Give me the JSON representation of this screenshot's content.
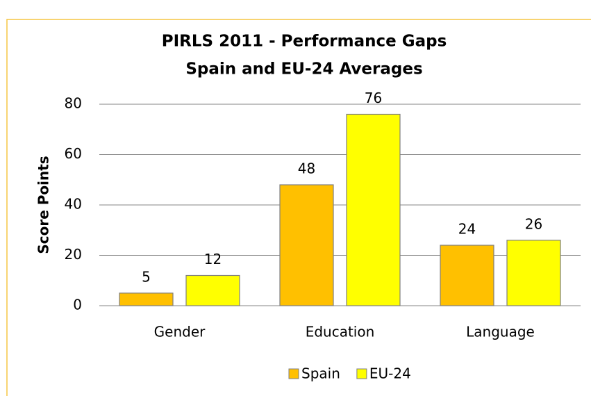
{
  "chart_data": {
    "type": "bar",
    "title": "PIRLS 2011 - Performance Gaps",
    "subtitle": "Spain and EU-24 Averages",
    "y_label": "Score Points",
    "categories": [
      "Gender",
      "Education",
      "Language"
    ],
    "series": [
      {
        "name": "Spain",
        "color": "#ffc000",
        "values": [
          5,
          48,
          24
        ]
      },
      {
        "name": "EU-24",
        "color": "#ffff00",
        "values": [
          12,
          76,
          26
        ]
      }
    ],
    "ylim": [
      0,
      80
    ],
    "yticks": [
      0,
      20,
      40,
      60,
      80
    ],
    "grid": true,
    "legend": "bottom"
  }
}
